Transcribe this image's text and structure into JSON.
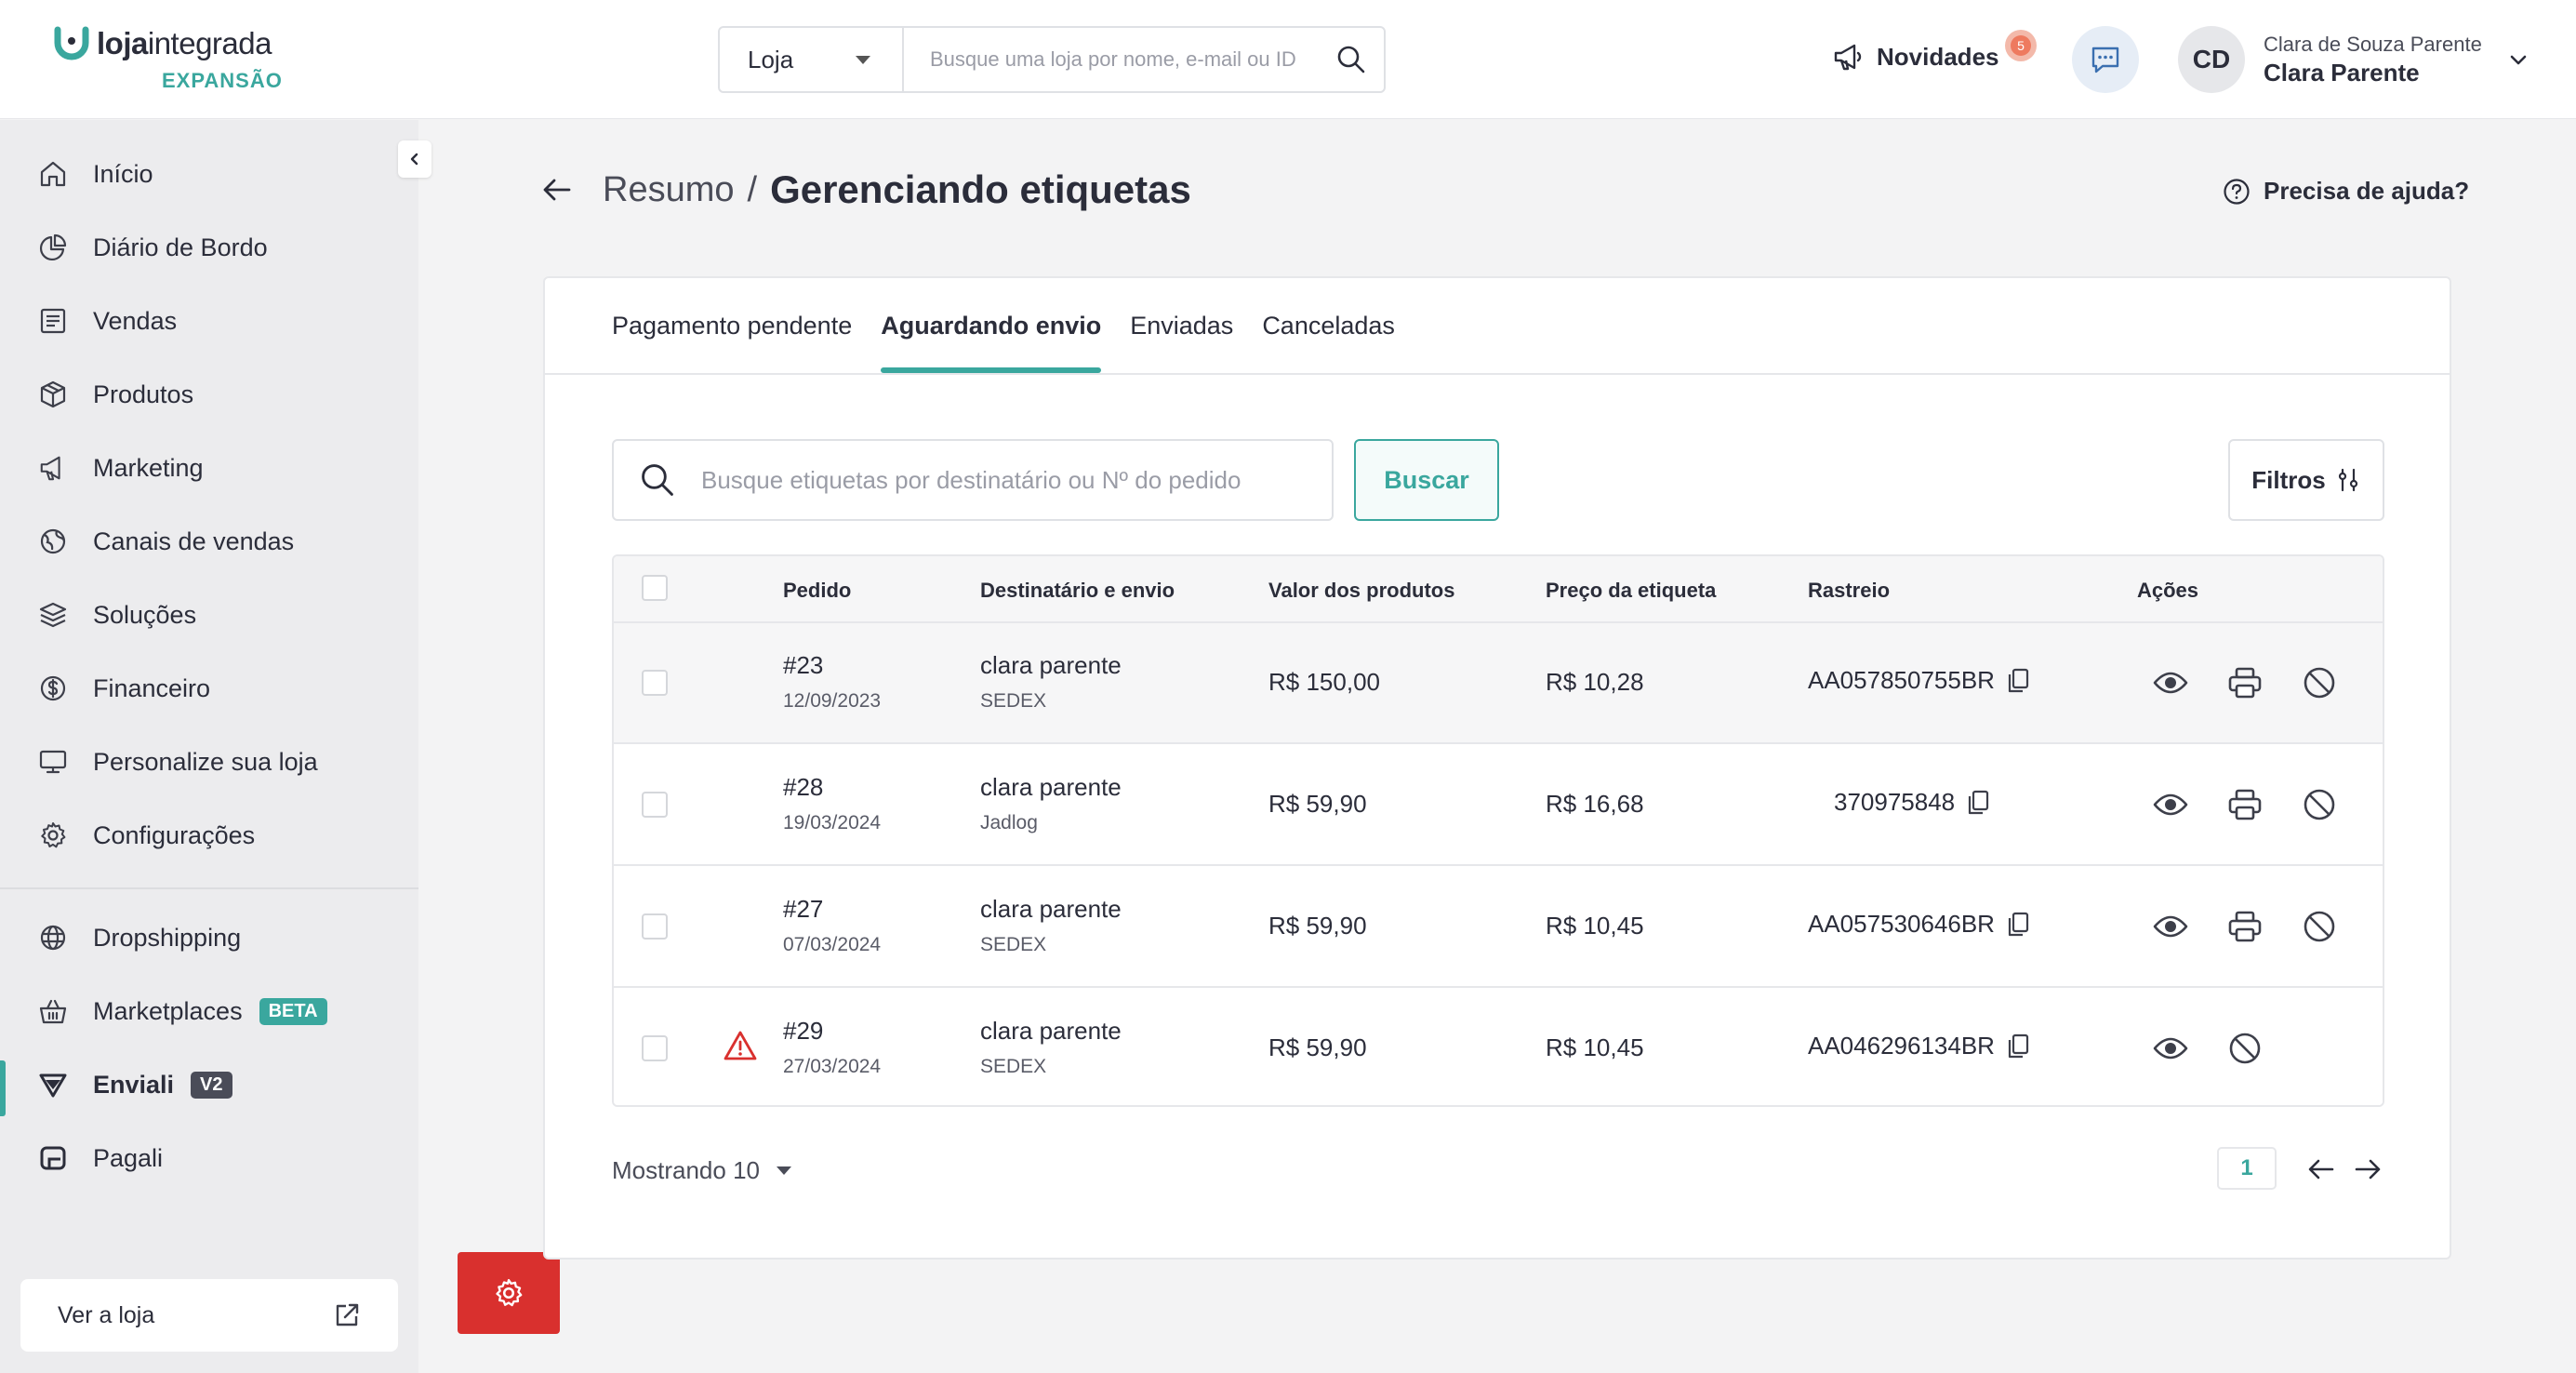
{
  "brand": {
    "name_bold": "loja",
    "name_regular": "integrada",
    "plan": "EXPANSÃO",
    "accent_color": "#3aa79e"
  },
  "header": {
    "store_select": {
      "value": "Loja"
    },
    "store_search": {
      "placeholder": "Busque uma loja por nome, e-mail ou ID"
    },
    "news": {
      "label": "Novidades",
      "count": "5"
    },
    "user": {
      "initials": "CD",
      "full_name": "Clara de Souza Parente",
      "short_name": "Clara Parente"
    }
  },
  "sidebar": {
    "items": [
      {
        "label": "Início",
        "icon": "home-icon"
      },
      {
        "label": "Diário de Bordo",
        "icon": "pie-chart-icon"
      },
      {
        "label": "Vendas",
        "icon": "receipt-icon"
      },
      {
        "label": "Produtos",
        "icon": "box-icon"
      },
      {
        "label": "Marketing",
        "icon": "megaphone-icon"
      },
      {
        "label": "Canais de vendas",
        "icon": "globe-icon"
      },
      {
        "label": "Soluções",
        "icon": "layers-icon"
      },
      {
        "label": "Financeiro",
        "icon": "dollar-icon"
      },
      {
        "label": "Personalize sua loja",
        "icon": "monitor-icon"
      },
      {
        "label": "Configurações",
        "icon": "gear-icon"
      }
    ],
    "extra_items": [
      {
        "label": "Dropshipping",
        "icon": "globe-icon"
      },
      {
        "label": "Marketplaces",
        "icon": "basket-icon",
        "tag": "BETA"
      },
      {
        "label": "Enviali",
        "icon": "enviali-icon",
        "tag": "V2"
      },
      {
        "label": "Pagali",
        "icon": "pagali-icon"
      }
    ],
    "visit_store": "Ver a loja"
  },
  "page": {
    "breadcrumb": "Resumo",
    "separator": "/",
    "title": "Gerenciando etiquetas",
    "help": "Precisa de ajuda?"
  },
  "tabs": [
    {
      "label": "Pagamento pendente",
      "active": false
    },
    {
      "label": "Aguardando envio",
      "active": true
    },
    {
      "label": "Enviadas",
      "active": false
    },
    {
      "label": "Canceladas",
      "active": false
    }
  ],
  "search": {
    "placeholder": "Busque etiquetas por destinatário ou Nº do pedido",
    "button": "Buscar",
    "filters": "Filtros"
  },
  "table": {
    "columns": [
      "Pedido",
      "Destinatário e envio",
      "Valor dos produtos",
      "Preço da etiqueta",
      "Rastreio",
      "Ações"
    ],
    "rows": [
      {
        "order": "#23",
        "date": "12/09/2023",
        "recipient": "clara parente",
        "carrier": "SEDEX",
        "value": "R$ 150,00",
        "label_price": "R$ 10,28",
        "tracking": "AA057850755BR",
        "warning": false,
        "printable": true
      },
      {
        "order": "#28",
        "date": "19/03/2024",
        "recipient": "clara parente",
        "carrier": "Jadlog",
        "value": "R$ 59,90",
        "label_price": "R$ 16,68",
        "tracking": "370975848",
        "warning": false,
        "printable": true
      },
      {
        "order": "#27",
        "date": "07/03/2024",
        "recipient": "clara parente",
        "carrier": "SEDEX",
        "value": "R$ 59,90",
        "label_price": "R$ 10,45",
        "tracking": "AA057530646BR",
        "warning": false,
        "printable": true
      },
      {
        "order": "#29",
        "date": "27/03/2024",
        "recipient": "clara parente",
        "carrier": "SEDEX",
        "value": "R$ 59,90",
        "label_price": "R$ 10,45",
        "tracking": "AA046296134BR",
        "warning": true,
        "printable": false
      }
    ]
  },
  "pagination": {
    "showing": "Mostrando 10",
    "current_page": "1"
  }
}
